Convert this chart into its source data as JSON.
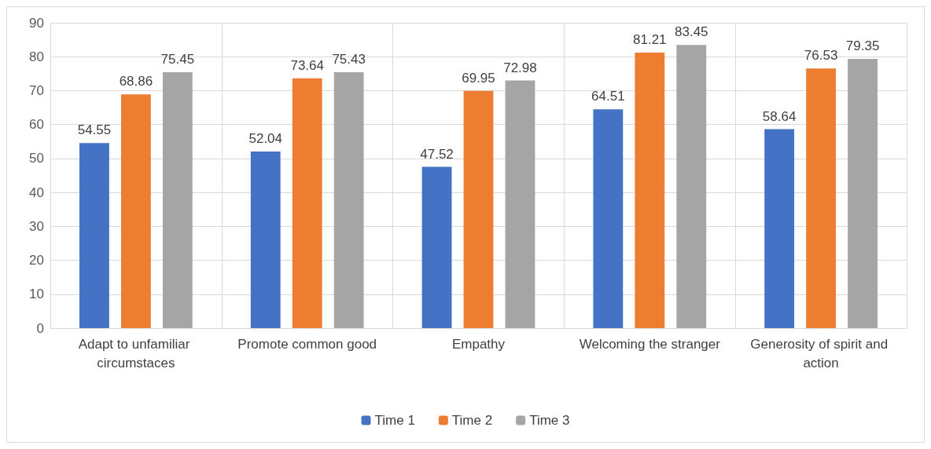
{
  "chart_data": {
    "type": "bar",
    "categories": [
      "Adapt to unfamiliar circumstaces",
      "Promote common good",
      "Empathy",
      "Welcoming the stranger",
      "Generosity of spirit and action"
    ],
    "series": [
      {
        "name": "Time 1",
        "color": "#4472c4",
        "values": [
          54.55,
          52.04,
          47.52,
          64.51,
          58.64
        ]
      },
      {
        "name": "Time 2",
        "color": "#ed7d31",
        "values": [
          68.86,
          73.64,
          69.95,
          81.21,
          76.53
        ]
      },
      {
        "name": "Time 3",
        "color": "#a5a5a5",
        "values": [
          75.45,
          75.43,
          72.98,
          83.45,
          79.35
        ]
      }
    ],
    "ylim": [
      0,
      90
    ],
    "yticks": [
      0,
      10,
      20,
      30,
      40,
      50,
      60,
      70,
      80,
      90
    ],
    "grid": true,
    "legend": "bottom",
    "data_labels": true
  }
}
